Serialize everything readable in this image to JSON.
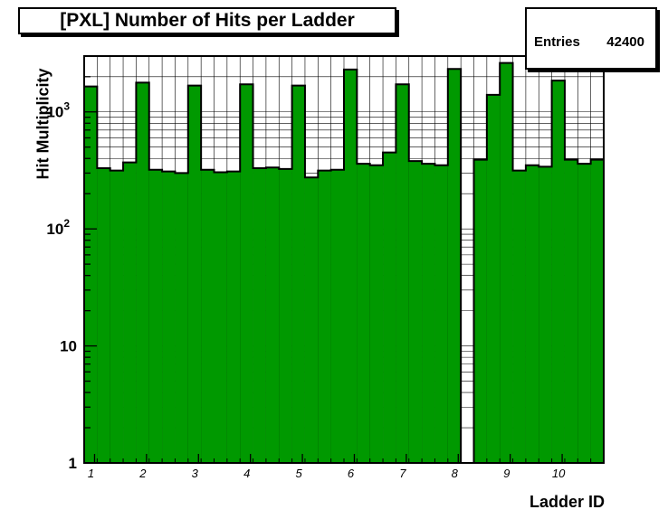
{
  "title": "[PXL] Number of Hits per Ladder",
  "stats": {
    "label": "Entries",
    "value": "42400"
  },
  "colors": {
    "fill": "#009900",
    "edge": "#000000",
    "grid": "#000000"
  },
  "chart_data": {
    "type": "bar",
    "title": "[PXL] Number of Hits per Ladder",
    "xlabel": "Ladder ID",
    "ylabel": "Hit Multiplicity",
    "yscale": "log",
    "ylim": [
      1,
      3000
    ],
    "xlim": [
      0.8,
      10.8
    ],
    "grid": true,
    "legend": "none",
    "bin_width": 0.25,
    "x_ticks": [
      1,
      2,
      3,
      4,
      5,
      6,
      7,
      8,
      9,
      10
    ],
    "y_ticks": [
      {
        "value": 1,
        "label": "1"
      },
      {
        "value": 10,
        "label": "10"
      },
      {
        "value": 100,
        "label": "10^2"
      },
      {
        "value": 1000,
        "label": "10^3"
      }
    ],
    "values": [
      1650,
      330,
      315,
      370,
      1780,
      320,
      310,
      300,
      1680,
      320,
      305,
      310,
      1720,
      330,
      335,
      325,
      1680,
      275,
      315,
      320,
      2300,
      360,
      350,
      450,
      1720,
      380,
      360,
      350,
      2330,
      1,
      390,
      1400,
      2620,
      315,
      350,
      340,
      1850,
      390,
      360,
      390
    ]
  }
}
